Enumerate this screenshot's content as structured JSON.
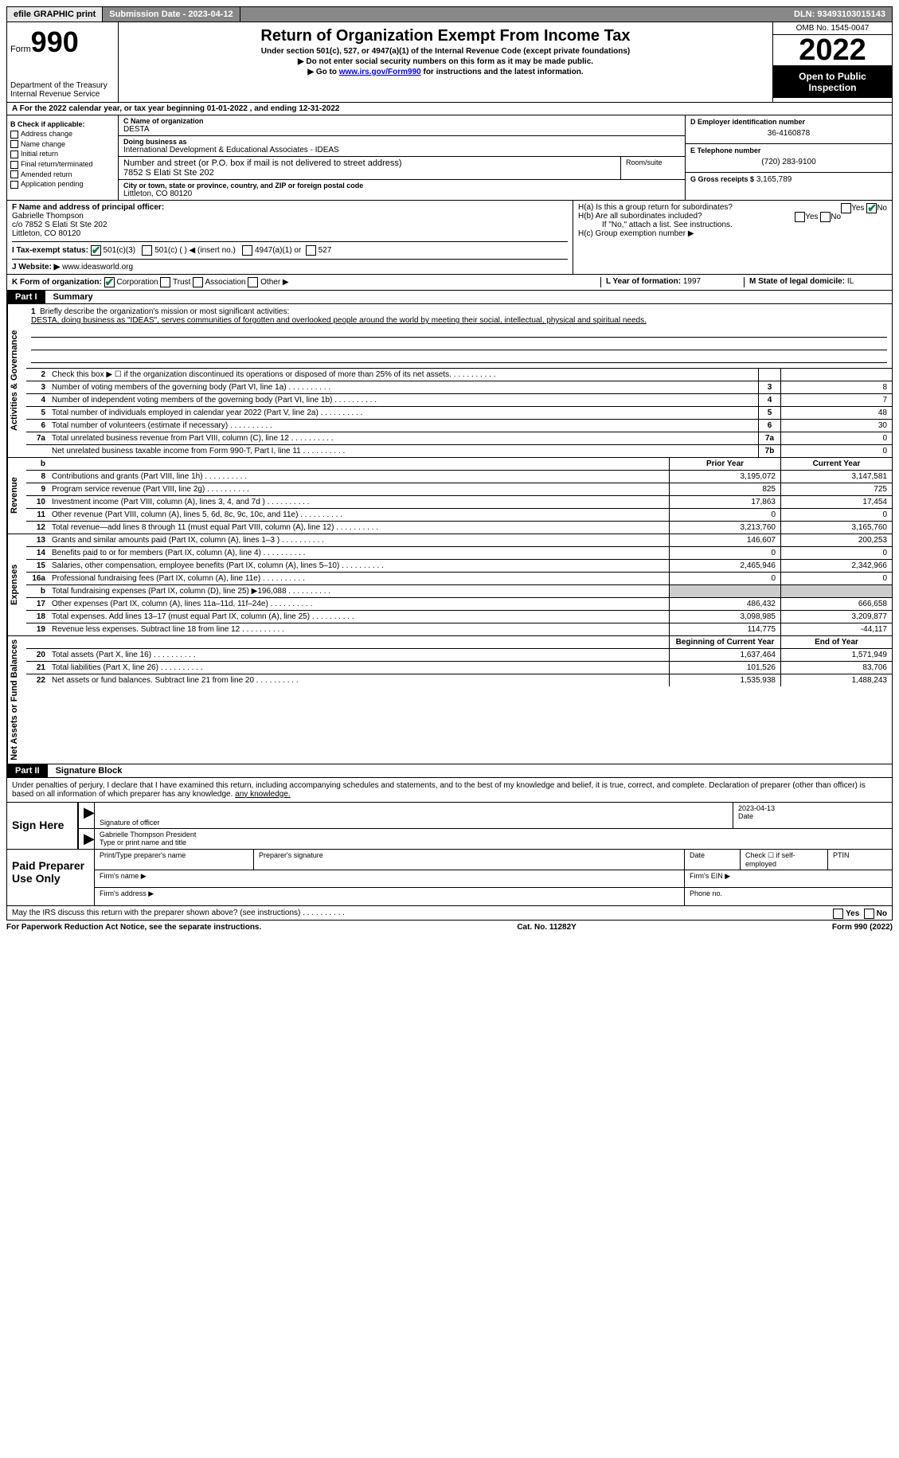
{
  "header_bar": {
    "efile": "efile GRAPHIC print",
    "submission": "Submission Date - 2023-04-12",
    "dln": "DLN: 93493103015143"
  },
  "form_header": {
    "form_word": "Form",
    "form_num": "990",
    "dept": "Department of the Treasury Internal Revenue Service",
    "title": "Return of Organization Exempt From Income Tax",
    "sub1": "Under section 501(c), 527, or 4947(a)(1) of the Internal Revenue Code (except private foundations)",
    "sub2": "▶ Do not enter social security numbers on this form as it may be made public.",
    "sub3_a": "▶ Go to ",
    "sub3_link": "www.irs.gov/Form990",
    "sub3_b": " for instructions and the latest information.",
    "omb": "OMB No. 1545-0047",
    "year": "2022",
    "otp": "Open to Public Inspection"
  },
  "row_a": "A For the 2022 calendar year, or tax year beginning 01-01-2022   , and ending 12-31-2022",
  "section_b": {
    "b_label": "B Check if applicable:",
    "checks": [
      "Address change",
      "Name change",
      "Initial return",
      "Final return/terminated",
      "Amended return",
      "Application pending"
    ],
    "c_label": "C Name of organization",
    "c_name": "DESTA",
    "dba_label": "Doing business as",
    "dba": "International Development & Educational Associates - IDEAS",
    "street_label": "Number and street (or P.O. box if mail is not delivered to street address)",
    "street": "7852 S Elati St Ste 202",
    "room_label": "Room/suite",
    "city_label": "City or town, state or province, country, and ZIP or foreign postal code",
    "city": "Littleton, CO  80120",
    "d_label": "D Employer identification number",
    "d_val": "36-4160878",
    "e_label": "E Telephone number",
    "e_val": "(720) 283-9100",
    "g_label": "G Gross receipts $",
    "g_val": "3,165,789"
  },
  "section_fh": {
    "f_label": "F Name and address of principal officer:",
    "f_name": "Gabrielle Thompson",
    "f_addr1": "c/o 7852 S Elati St Ste 202",
    "f_addr2": "Littleton, CO  80120",
    "i_label": "I Tax-exempt status:",
    "i_501c3": "501(c)(3)",
    "i_501c": "501(c) (  ) ◀ (insert no.)",
    "i_4947": "4947(a)(1) or",
    "i_527": "527",
    "j_label": "J Website: ▶",
    "j_val": "www.ideasworld.org",
    "ha": "H(a)  Is this a group return for subordinates?",
    "hb": "H(b)  Are all subordinates included?",
    "hb_note": "If \"No,\" attach a list. See instructions.",
    "hc": "H(c)  Group exemption number ▶",
    "yes": "Yes",
    "no": "No"
  },
  "row_k": {
    "k_label": "K Form of organization:",
    "corp": "Corporation",
    "trust": "Trust",
    "assoc": "Association",
    "other": "Other ▶",
    "l_label": "L Year of formation:",
    "l_val": "1997",
    "m_label": "M State of legal domicile:",
    "m_val": "IL"
  },
  "part1": {
    "num": "Part I",
    "title": "Summary"
  },
  "mission": {
    "num": "1",
    "label": "Briefly describe the organization's mission or most significant activities:",
    "text": "DESTA, doing business as \"IDEAS\", serves communities of forgotten and overlooked people around the world by meeting their social, intellectual, physical and spiritual needs."
  },
  "gov_rows": [
    {
      "num": "2",
      "desc": "Check this box ▶ ☐ if the organization discontinued its operations or disposed of more than 25% of its net assets.",
      "box": "",
      "val": ""
    },
    {
      "num": "3",
      "desc": "Number of voting members of the governing body (Part VI, line 1a)",
      "box": "3",
      "val": "8"
    },
    {
      "num": "4",
      "desc": "Number of independent voting members of the governing body (Part VI, line 1b)",
      "box": "4",
      "val": "7"
    },
    {
      "num": "5",
      "desc": "Total number of individuals employed in calendar year 2022 (Part V, line 2a)",
      "box": "5",
      "val": "48"
    },
    {
      "num": "6",
      "desc": "Total number of volunteers (estimate if necessary)",
      "box": "6",
      "val": "30"
    },
    {
      "num": "7a",
      "desc": "Total unrelated business revenue from Part VIII, column (C), line 12",
      "box": "7a",
      "val": "0"
    },
    {
      "num": "",
      "desc": "Net unrelated business taxable income from Form 990-T, Part I, line 11",
      "box": "7b",
      "val": "0"
    }
  ],
  "rev_header": {
    "prior": "Prior Year",
    "current": "Current Year"
  },
  "rev_rows": [
    {
      "num": "8",
      "desc": "Contributions and grants (Part VIII, line 1h)",
      "prior": "3,195,072",
      "current": "3,147,581"
    },
    {
      "num": "9",
      "desc": "Program service revenue (Part VIII, line 2g)",
      "prior": "825",
      "current": "725"
    },
    {
      "num": "10",
      "desc": "Investment income (Part VIII, column (A), lines 3, 4, and 7d )",
      "prior": "17,863",
      "current": "17,454"
    },
    {
      "num": "11",
      "desc": "Other revenue (Part VIII, column (A), lines 5, 6d, 8c, 9c, 10c, and 11e)",
      "prior": "0",
      "current": "0"
    },
    {
      "num": "12",
      "desc": "Total revenue—add lines 8 through 11 (must equal Part VIII, column (A), line 12)",
      "prior": "3,213,760",
      "current": "3,165,760"
    }
  ],
  "exp_rows": [
    {
      "num": "13",
      "desc": "Grants and similar amounts paid (Part IX, column (A), lines 1–3 )",
      "prior": "146,607",
      "current": "200,253"
    },
    {
      "num": "14",
      "desc": "Benefits paid to or for members (Part IX, column (A), line 4)",
      "prior": "0",
      "current": "0"
    },
    {
      "num": "15",
      "desc": "Salaries, other compensation, employee benefits (Part IX, column (A), lines 5–10)",
      "prior": "2,465,946",
      "current": "2,342,966"
    },
    {
      "num": "16a",
      "desc": "Professional fundraising fees (Part IX, column (A), line 11e)",
      "prior": "0",
      "current": "0"
    },
    {
      "num": "b",
      "desc": "Total fundraising expenses (Part IX, column (D), line 25) ▶196,088",
      "prior": "",
      "current": "",
      "shade": true
    },
    {
      "num": "17",
      "desc": "Other expenses (Part IX, column (A), lines 11a–11d, 11f–24e)",
      "prior": "486,432",
      "current": "666,658"
    },
    {
      "num": "18",
      "desc": "Total expenses. Add lines 13–17 (must equal Part IX, column (A), line 25)",
      "prior": "3,098,985",
      "current": "3,209,877"
    },
    {
      "num": "19",
      "desc": "Revenue less expenses. Subtract line 18 from line 12",
      "prior": "114,775",
      "current": "-44,117"
    }
  ],
  "net_header": {
    "prior": "Beginning of Current Year",
    "current": "End of Year"
  },
  "net_rows": [
    {
      "num": "20",
      "desc": "Total assets (Part X, line 16)",
      "prior": "1,637,464",
      "current": "1,571,949"
    },
    {
      "num": "21",
      "desc": "Total liabilities (Part X, line 26)",
      "prior": "101,526",
      "current": "83,706"
    },
    {
      "num": "22",
      "desc": "Net assets or fund balances. Subtract line 21 from line 20",
      "prior": "1,535,938",
      "current": "1,488,243"
    }
  ],
  "part2": {
    "num": "Part II",
    "title": "Signature Block"
  },
  "sig_decl": "Under penalties of perjury, I declare that I have examined this return, including accompanying schedules and statements, and to the best of my knowledge and belief, it is true, correct, and complete. Declaration of preparer (other than officer) is based on all information of which preparer has any knowledge.",
  "sign": {
    "label": "Sign Here",
    "sig_officer": "Signature of officer",
    "date": "2023-04-13",
    "date_lbl": "Date",
    "name": "Gabrielle Thompson  President",
    "name_lbl": "Type or print name and title"
  },
  "prep": {
    "label": "Paid Preparer Use Only",
    "h1": "Print/Type preparer's name",
    "h2": "Preparer's signature",
    "h3": "Date",
    "h4": "Check ☐ if self-employed",
    "h5": "PTIN",
    "firm_name": "Firm's name   ▶",
    "firm_ein": "Firm's EIN ▶",
    "firm_addr": "Firm's address ▶",
    "phone": "Phone no."
  },
  "discuss": "May the IRS discuss this return with the preparer shown above? (see instructions)",
  "footer": {
    "left": "For Paperwork Reduction Act Notice, see the separate instructions.",
    "mid": "Cat. No. 11282Y",
    "right": "Form 990 (2022)"
  },
  "vtabs": {
    "gov": "Activities & Governance",
    "rev": "Revenue",
    "exp": "Expenses",
    "net": "Net Assets or Fund Balances"
  }
}
